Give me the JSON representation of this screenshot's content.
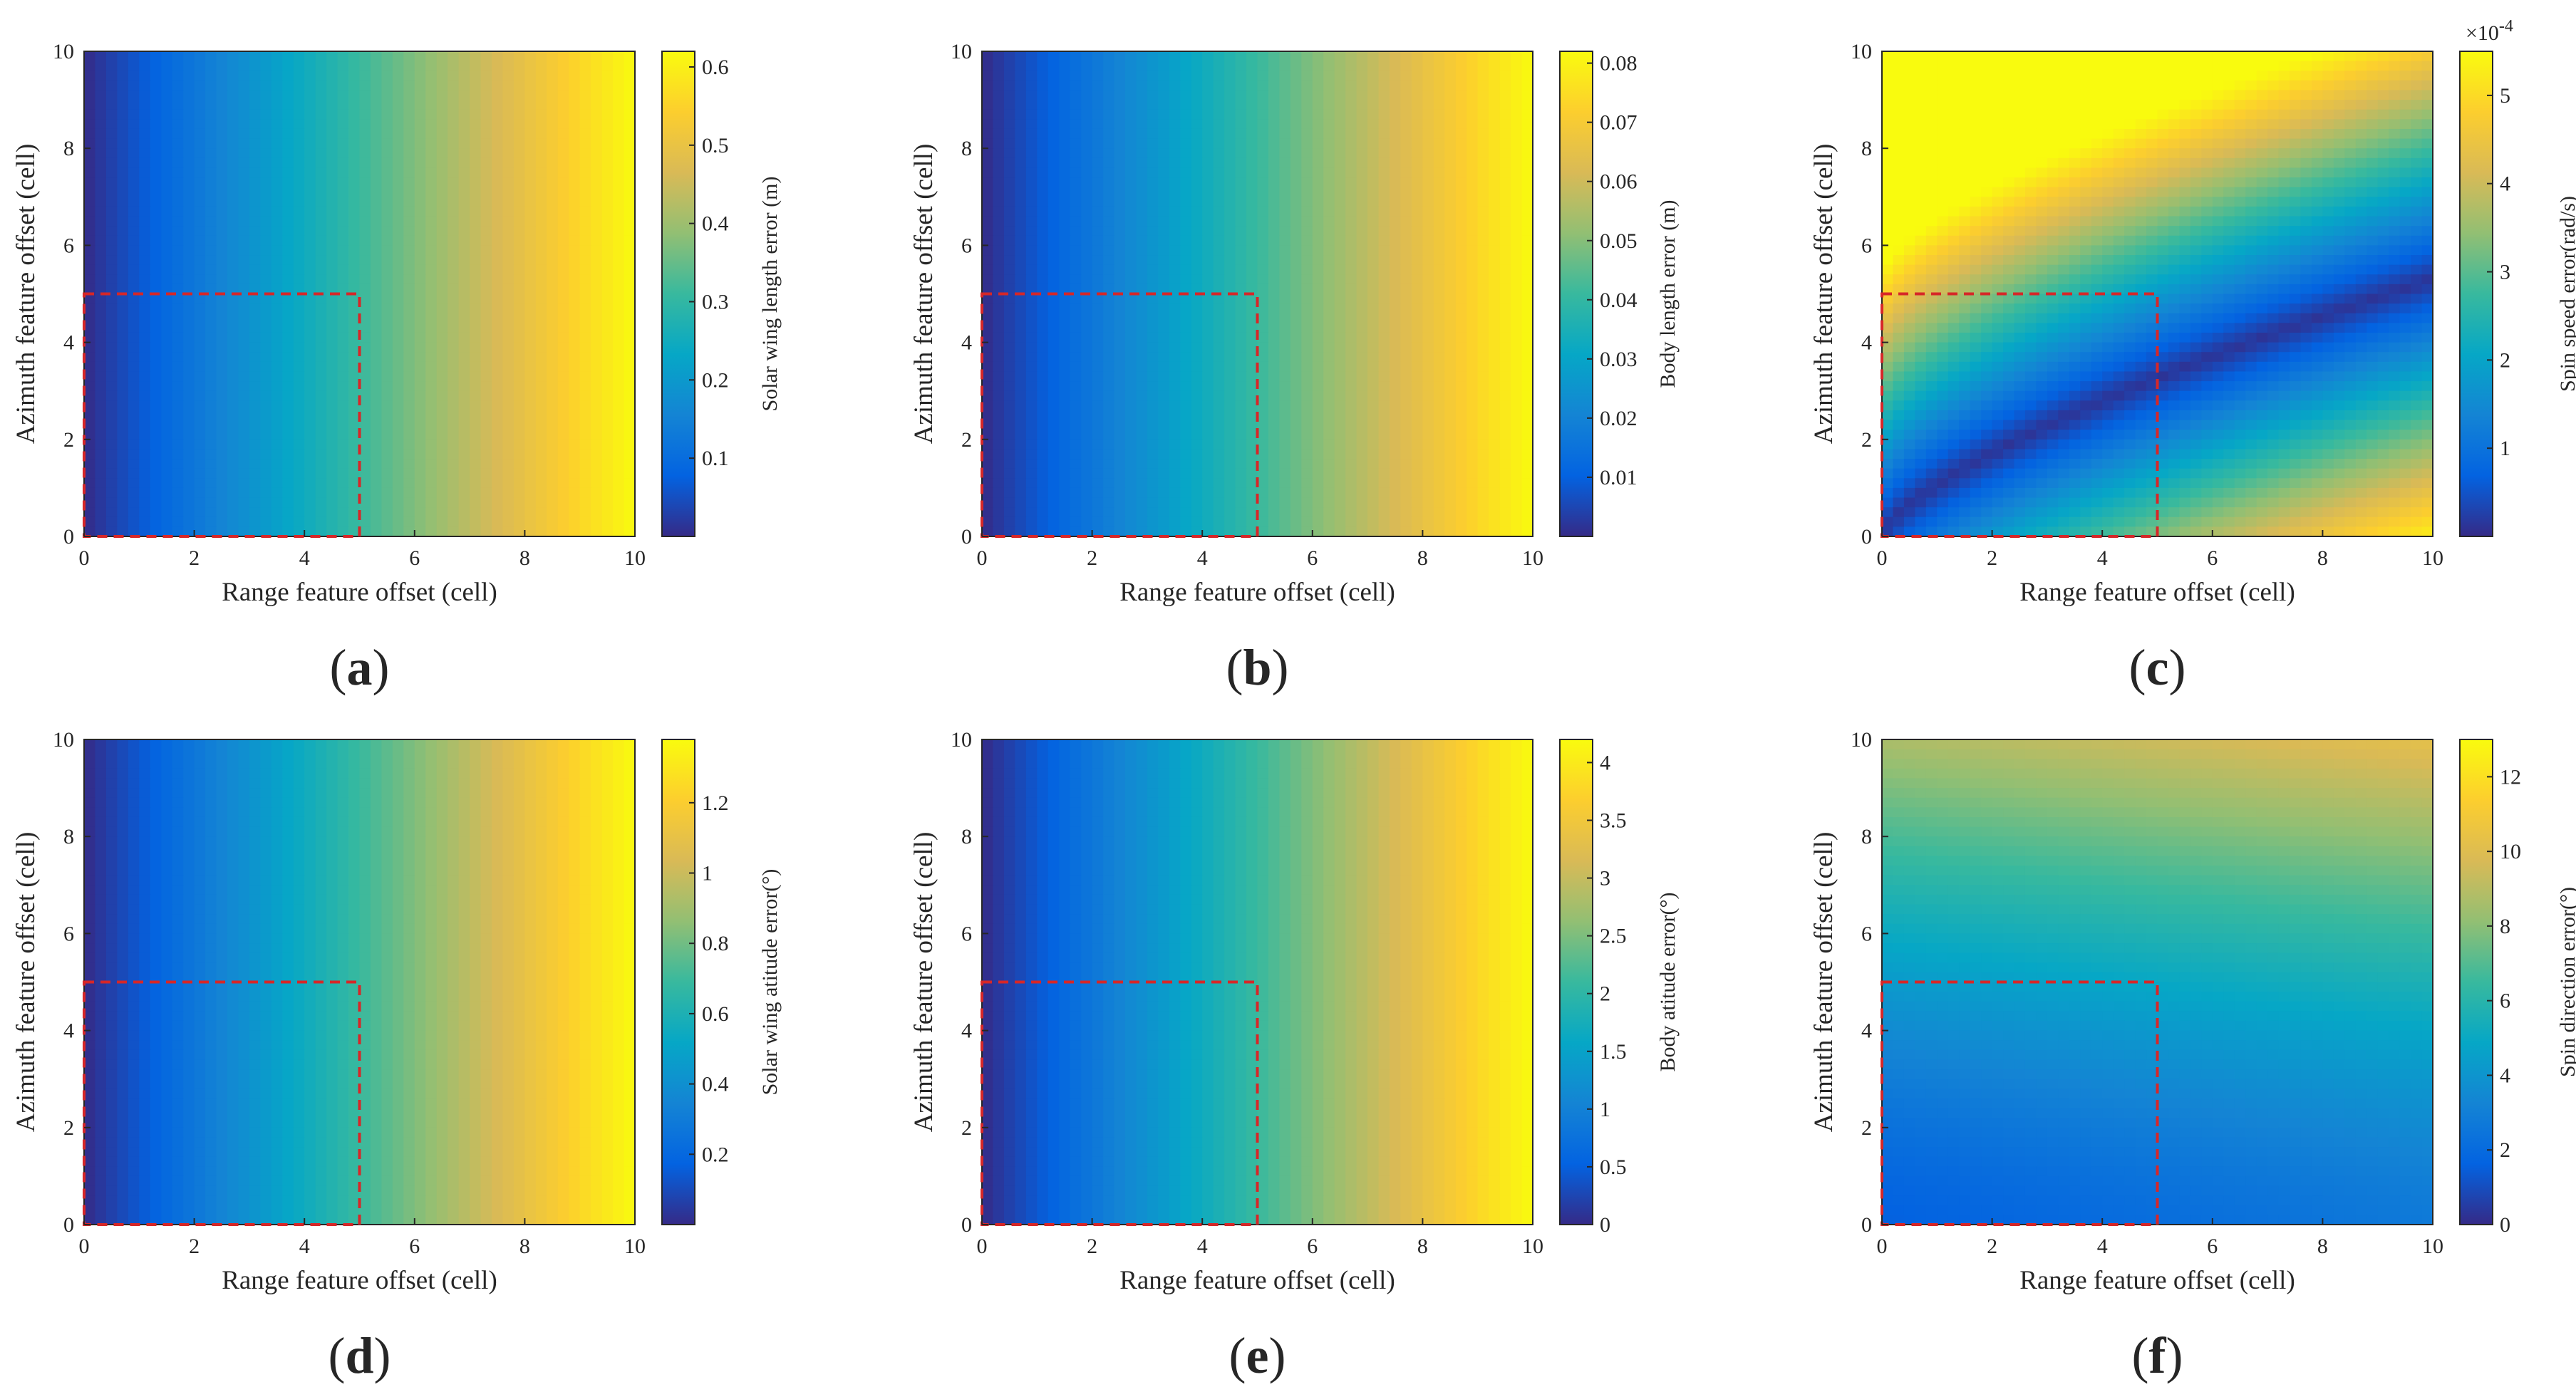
{
  "colormap": "parula",
  "highlight_color": "#d62728",
  "chart_data": [
    {
      "type": "heatmap",
      "id": "a",
      "panel_label": "(a)",
      "field": "range_linear",
      "gamma": 1.0,
      "xlabel": "Range feature offset (cell)",
      "ylabel": "Azimuth feature offset (cell)",
      "xlim": [
        0,
        10
      ],
      "ylim": [
        0,
        10
      ],
      "xticks": [
        "0",
        "2",
        "4",
        "6",
        "8",
        "10"
      ],
      "yticks": [
        "0",
        "2",
        "4",
        "6",
        "8",
        "10"
      ],
      "highlight_region": {
        "x": [
          0,
          5
        ],
        "y": [
          0,
          5
        ]
      },
      "colorbar": {
        "label": "Solar wing length error (m)",
        "min": 0.0,
        "max": 0.62,
        "ticks": [
          {
            "value": 0.1,
            "label": "0.1"
          },
          {
            "value": 0.2,
            "label": "0.2"
          },
          {
            "value": 0.3,
            "label": "0.3"
          },
          {
            "value": 0.4,
            "label": "0.4"
          },
          {
            "value": 0.5,
            "label": "0.5"
          },
          {
            "value": 0.6,
            "label": "0.6"
          }
        ]
      }
    },
    {
      "type": "heatmap",
      "id": "b",
      "panel_label": "(b)",
      "field": "range_linear",
      "gamma": 1.0,
      "xlabel": "Range feature offset (cell)",
      "ylabel": "Azimuth feature offset (cell)",
      "xlim": [
        0,
        10
      ],
      "ylim": [
        0,
        10
      ],
      "xticks": [
        "0",
        "2",
        "4",
        "6",
        "8",
        "10"
      ],
      "yticks": [
        "0",
        "2",
        "4",
        "6",
        "8",
        "10"
      ],
      "highlight_region": {
        "x": [
          0,
          5
        ],
        "y": [
          0,
          5
        ]
      },
      "colorbar": {
        "label": "Body length error (m)",
        "min": 0.0,
        "max": 0.082,
        "ticks": [
          {
            "value": 0.01,
            "label": "0.01"
          },
          {
            "value": 0.02,
            "label": "0.02"
          },
          {
            "value": 0.03,
            "label": "0.03"
          },
          {
            "value": 0.04,
            "label": "0.04"
          },
          {
            "value": 0.05,
            "label": "0.05"
          },
          {
            "value": 0.06,
            "label": "0.06"
          },
          {
            "value": 0.07,
            "label": "0.07"
          },
          {
            "value": 0.08,
            "label": "0.08"
          }
        ]
      }
    },
    {
      "type": "heatmap",
      "id": "c",
      "panel_label": "(c)",
      "field": "spin_speed",
      "xlabel": "Range feature offset (cell)",
      "ylabel": "Azimuth feature offset (cell)",
      "xlim": [
        0,
        10
      ],
      "ylim": [
        0,
        10
      ],
      "xticks": [
        "0",
        "2",
        "4",
        "6",
        "8",
        "10"
      ],
      "yticks": [
        "0",
        "2",
        "4",
        "6",
        "8",
        "10"
      ],
      "highlight_region": {
        "x": [
          0,
          5
        ],
        "y": [
          0,
          5
        ]
      },
      "colorbar": {
        "label": "Spin speed error(rad/s)",
        "min": 0.0,
        "max": 5.5,
        "exponent_base": "×10",
        "exponent": "-4",
        "ticks": [
          {
            "value": 1,
            "label": "1"
          },
          {
            "value": 2,
            "label": "2"
          },
          {
            "value": 3,
            "label": "3"
          },
          {
            "value": 4,
            "label": "4"
          },
          {
            "value": 5,
            "label": "5"
          }
        ]
      }
    },
    {
      "type": "heatmap",
      "id": "d",
      "panel_label": "(d)",
      "field": "range_linear",
      "gamma": 1.0,
      "xlabel": "Range feature offset (cell)",
      "ylabel": "Azimuth feature offset (cell)",
      "xlim": [
        0,
        10
      ],
      "ylim": [
        0,
        10
      ],
      "xticks": [
        "0",
        "2",
        "4",
        "6",
        "8",
        "10"
      ],
      "yticks": [
        "0",
        "2",
        "4",
        "6",
        "8",
        "10"
      ],
      "highlight_region": {
        "x": [
          0,
          5
        ],
        "y": [
          0,
          5
        ]
      },
      "colorbar": {
        "label": "Solar wing atitude error(°)",
        "min": 0.0,
        "max": 1.38,
        "ticks": [
          {
            "value": 0.2,
            "label": "0.2"
          },
          {
            "value": 0.4,
            "label": "0.4"
          },
          {
            "value": 0.6,
            "label": "0.6"
          },
          {
            "value": 0.8,
            "label": "0.8"
          },
          {
            "value": 1.0,
            "label": "1"
          },
          {
            "value": 1.2,
            "label": "1.2"
          }
        ]
      }
    },
    {
      "type": "heatmap",
      "id": "e",
      "panel_label": "(e)",
      "field": "range_linear",
      "gamma": 1.0,
      "xlabel": "Range feature offset (cell)",
      "ylabel": "Azimuth feature offset (cell)",
      "xlim": [
        0,
        10
      ],
      "ylim": [
        0,
        10
      ],
      "xticks": [
        "0",
        "2",
        "4",
        "6",
        "8",
        "10"
      ],
      "yticks": [
        "0",
        "2",
        "4",
        "6",
        "8",
        "10"
      ],
      "highlight_region": {
        "x": [
          0,
          5
        ],
        "y": [
          0,
          5
        ]
      },
      "colorbar": {
        "label": "Body atitude error(°)",
        "min": 0.0,
        "max": 4.2,
        "ticks": [
          {
            "value": 0,
            "label": "0"
          },
          {
            "value": 0.5,
            "label": "0.5"
          },
          {
            "value": 1.0,
            "label": "1"
          },
          {
            "value": 1.5,
            "label": "1.5"
          },
          {
            "value": 2.0,
            "label": "2"
          },
          {
            "value": 2.5,
            "label": "2.5"
          },
          {
            "value": 3.0,
            "label": "3"
          },
          {
            "value": 3.5,
            "label": "3.5"
          },
          {
            "value": 4.0,
            "label": "4"
          }
        ]
      }
    },
    {
      "type": "heatmap",
      "id": "f",
      "panel_label": "(f)",
      "field": "spin_direction",
      "xlabel": "Range feature offset (cell)",
      "ylabel": "Azimuth feature offset (cell)",
      "xlim": [
        0,
        10
      ],
      "ylim": [
        0,
        10
      ],
      "xticks": [
        "0",
        "2",
        "4",
        "6",
        "8",
        "10"
      ],
      "yticks": [
        "0",
        "2",
        "4",
        "6",
        "8",
        "10"
      ],
      "highlight_region": {
        "x": [
          0,
          5
        ],
        "y": [
          0,
          5
        ]
      },
      "colorbar": {
        "label": "Spin direction error(°)",
        "min": 0.0,
        "max": 13.0,
        "ticks": [
          {
            "value": 0,
            "label": "0"
          },
          {
            "value": 2,
            "label": "2"
          },
          {
            "value": 4,
            "label": "4"
          },
          {
            "value": 6,
            "label": "6"
          },
          {
            "value": 8,
            "label": "8"
          },
          {
            "value": 10,
            "label": "10"
          },
          {
            "value": 12,
            "label": "12"
          }
        ]
      }
    }
  ]
}
